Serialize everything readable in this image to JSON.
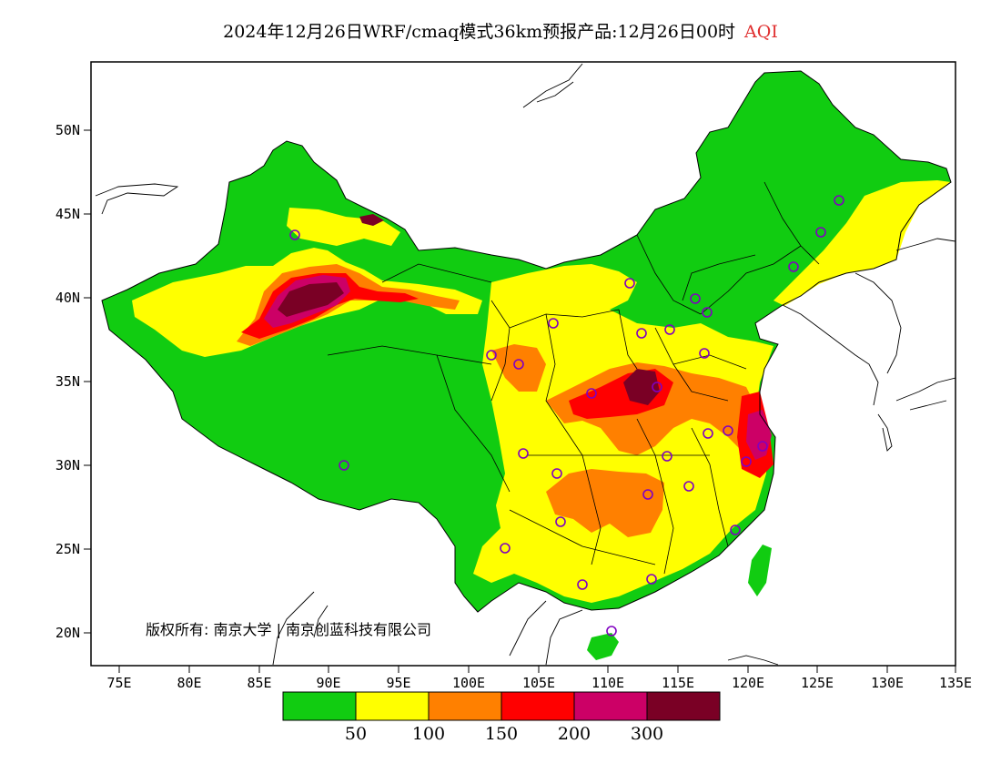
{
  "title": {
    "text": "2024年12月26日WRF/cmaq模式36km预报产品:12月26日00时",
    "variable": "AQI"
  },
  "axes": {
    "y_ticks": [
      "50N",
      "45N",
      "40N",
      "35N",
      "30N",
      "25N",
      "20N"
    ],
    "x_ticks": [
      "75E",
      "80E",
      "85E",
      "90E",
      "95E",
      "100E",
      "105E",
      "110E",
      "115E",
      "120E",
      "125E",
      "130E",
      "135E"
    ]
  },
  "legend": {
    "colors": [
      "#11cc11",
      "#ffff00",
      "#ff8000",
      "#ff0000",
      "#cc0066",
      "#7a0025"
    ],
    "labels": [
      "50",
      "100",
      "150",
      "200",
      "300"
    ]
  },
  "copyright": "版权所有: 南京大学 | 南京创蓝科技有限公司",
  "map_colors": {
    "outline": "#000000",
    "station_marker": "#8000c0"
  }
}
